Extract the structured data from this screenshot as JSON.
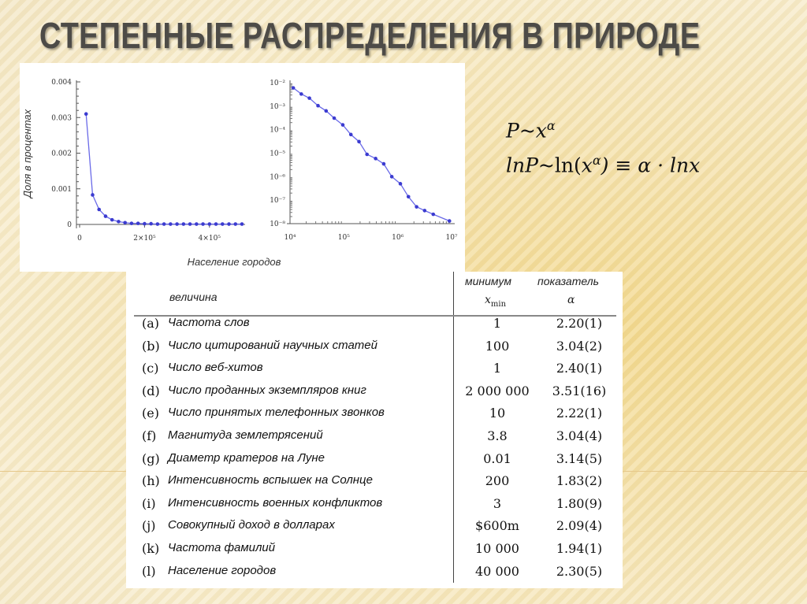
{
  "slide": {
    "title": "СТЕПЕННЫЕ РАСПРЕДЕЛЕНИЯ В ПРИРОДЕ",
    "formula_line1": {
      "lhs": "P~x",
      "sup": "α"
    },
    "formula_line2": {
      "a": "lnP~",
      "b": "ln(",
      "c": "x",
      "sup": "α",
      "d": ") ≡ α · lnx"
    }
  },
  "chart_data": [
    {
      "type": "line",
      "ylabel": "Доля в процентах",
      "xlabel": "Население городов",
      "xlim": [
        0,
        500000
      ],
      "ylim": [
        0,
        0.004
      ],
      "x_ticks": [
        "0",
        "2×10⁵",
        "4×10⁵"
      ],
      "y_ticks": [
        "0",
        "0.001",
        "0.002",
        "0.003",
        "0.004"
      ],
      "color": "#3b3bd0",
      "x": [
        20000,
        40000,
        60000,
        80000,
        100000,
        120000,
        140000,
        160000,
        180000,
        200000,
        220000,
        240000,
        260000,
        280000,
        300000,
        320000,
        340000,
        360000,
        380000,
        400000,
        420000,
        440000,
        460000,
        480000,
        500000
      ],
      "y": [
        0.0031,
        0.00083,
        0.00042,
        0.00023,
        0.00013,
        8e-05,
        5e-05,
        3e-05,
        3e-05,
        2e-05,
        2e-05,
        1e-05,
        1e-05,
        1e-05,
        1e-05,
        1e-05,
        1e-05,
        1e-05,
        1e-05,
        1e-05,
        1e-05,
        1e-05,
        1e-05,
        1e-05,
        1e-05
      ]
    },
    {
      "type": "line",
      "xscale": "log",
      "yscale": "log",
      "xlim": [
        10000,
        10000000
      ],
      "ylim": [
        1e-08,
        0.01
      ],
      "x_ticks": [
        "10⁴",
        "10⁵",
        "10⁶",
        "10⁷"
      ],
      "y_ticks": [
        "10⁻²",
        "10⁻³",
        "10⁻⁴",
        "10⁻⁵",
        "10⁻⁶",
        "10⁻⁷",
        "10⁻⁸"
      ],
      "color": "#3b3bd0",
      "x": [
        11500,
        16200,
        22900,
        33100,
        46800,
        66100,
        95500,
        135000,
        191000,
        269000,
        389000,
        550000,
        776000,
        1120000,
        1580000,
        2240000,
        3160000,
        4570000,
        9120000
      ],
      "y": [
        0.006,
        0.0033,
        0.0022,
        0.00105,
        0.00063,
        0.00031,
        0.00016,
        6.2e-05,
        3.1e-05,
        8.9e-06,
        5.9e-06,
        3.5e-06,
        1e-06,
        5e-07,
        1.4e-07,
        5.2e-08,
        3.6e-08,
        2.5e-08,
        1.3e-08
      ]
    }
  ],
  "table": {
    "header_name": "величина",
    "header_min": "минимум",
    "header_min_sym": "x_min",
    "header_exp": "показатель",
    "header_exp_sym": "α",
    "rows": [
      {
        "label": "(a)",
        "name": "Частота слов",
        "xmin": "1",
        "alpha": "2.20(1)"
      },
      {
        "label": "(b)",
        "name": "Число цитирований научных статей",
        "xmin": "100",
        "alpha": "3.04(2)"
      },
      {
        "label": "(c)",
        "name": "Число веб-хитов",
        "xmin": "1",
        "alpha": "2.40(1)"
      },
      {
        "label": "(d)",
        "name": "Число проданных экземпляров книг",
        "xmin": "2 000 000",
        "alpha": "3.51(16)"
      },
      {
        "label": "(e)",
        "name": "Число принятых телефонных звонков",
        "xmin": "10",
        "alpha": "2.22(1)"
      },
      {
        "label": "(f)",
        "name": "Магнитуда землетрясений",
        "xmin": "3.8",
        "alpha": "3.04(4)"
      },
      {
        "label": "(g)",
        "name": "Диаметр кратеров на Луне",
        "xmin": "0.01",
        "alpha": "3.14(5)"
      },
      {
        "label": "(h)",
        "name": "Интенсивность вспышек на Солнце",
        "xmin": "200",
        "alpha": "1.83(2)"
      },
      {
        "label": "(i)",
        "name": "Интенсивность военных конфликтов",
        "xmin": "3",
        "alpha": "1.80(9)"
      },
      {
        "label": "(j)",
        "name": "Совокупный доход в долларах",
        "xmin": "$600m",
        "alpha": "2.09(4)"
      },
      {
        "label": "(k)",
        "name": "Частота фамилий",
        "xmin": "10 000",
        "alpha": "1.94(1)"
      },
      {
        "label": "(l)",
        "name": "Население городов",
        "xmin": "40 000",
        "alpha": "2.30(5)"
      }
    ]
  }
}
